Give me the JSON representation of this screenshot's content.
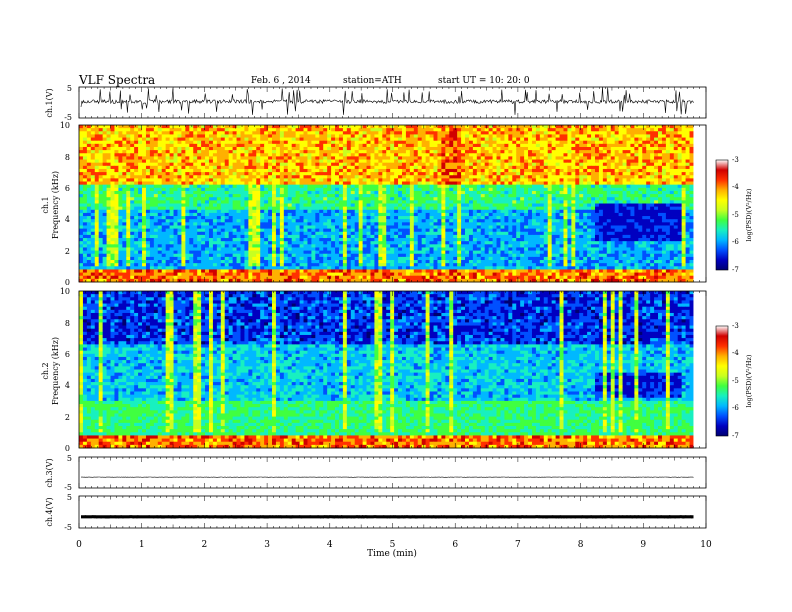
{
  "header": {
    "title": "VLF Spectra",
    "date": "Feb. 6 , 2014",
    "station": "station=ATH",
    "start_time": "start UT = 10: 20: 0"
  },
  "chart_data": [
    {
      "type": "line",
      "panel": "ch1-waveform",
      "ylabel": "ch.1(V)",
      "ylim": [
        -5,
        5
      ],
      "yticks": [
        "5",
        "-5"
      ],
      "series_level": 0.3,
      "color": "#000000"
    },
    {
      "type": "heatmap",
      "panel": "ch1-spectrogram",
      "ylabel_channel": "ch.1",
      "ylabel": "Frequency (kHz)",
      "ylim": [
        0,
        10
      ],
      "yticks": [
        "0",
        "2",
        "4",
        "6",
        "8",
        "10"
      ],
      "colorbar": {
        "label": "log(PSD)(V²/Hz)",
        "range": [
          -7,
          -3
        ],
        "ticks": [
          "-3",
          "-4",
          "-5",
          "-6",
          "-7"
        ]
      }
    },
    {
      "type": "heatmap",
      "panel": "ch2-spectrogram",
      "ylabel_channel": "ch.2",
      "ylabel": "Frequency (kHz)",
      "ylim": [
        0,
        10
      ],
      "yticks": [
        "0",
        "2",
        "4",
        "6",
        "8",
        "10"
      ],
      "colorbar": {
        "label": "log(PSD)(V²/Hz)",
        "range": [
          -7,
          -3
        ],
        "ticks": [
          "-3",
          "-4",
          "-5",
          "-6",
          "-7"
        ]
      }
    },
    {
      "type": "line",
      "panel": "ch3-waveform",
      "ylabel": "ch.3(V)",
      "ylim": [
        -5,
        5
      ],
      "yticks": [
        "5",
        "-5"
      ],
      "series_level": -1.5,
      "color": "#000000"
    },
    {
      "type": "line",
      "panel": "ch4-waveform",
      "ylabel": "ch.4(V)",
      "ylim": [
        -5,
        5
      ],
      "yticks": [
        "5",
        "-5"
      ],
      "series_level": -1.5,
      "color": "#000000"
    }
  ],
  "x_axis": {
    "label": "Time (min)",
    "xlim": [
      0,
      10
    ],
    "data_end": 9.8,
    "ticks": [
      "0",
      "1",
      "2",
      "3",
      "4",
      "5",
      "6",
      "7",
      "8",
      "9",
      "10"
    ]
  },
  "colormap": [
    "#000070",
    "#0000c0",
    "#0050ff",
    "#00b8ff",
    "#18f0c0",
    "#40ff40",
    "#c8ff20",
    "#ffff00",
    "#ffb000",
    "#ff3000",
    "#d00000",
    "#ffffff"
  ]
}
